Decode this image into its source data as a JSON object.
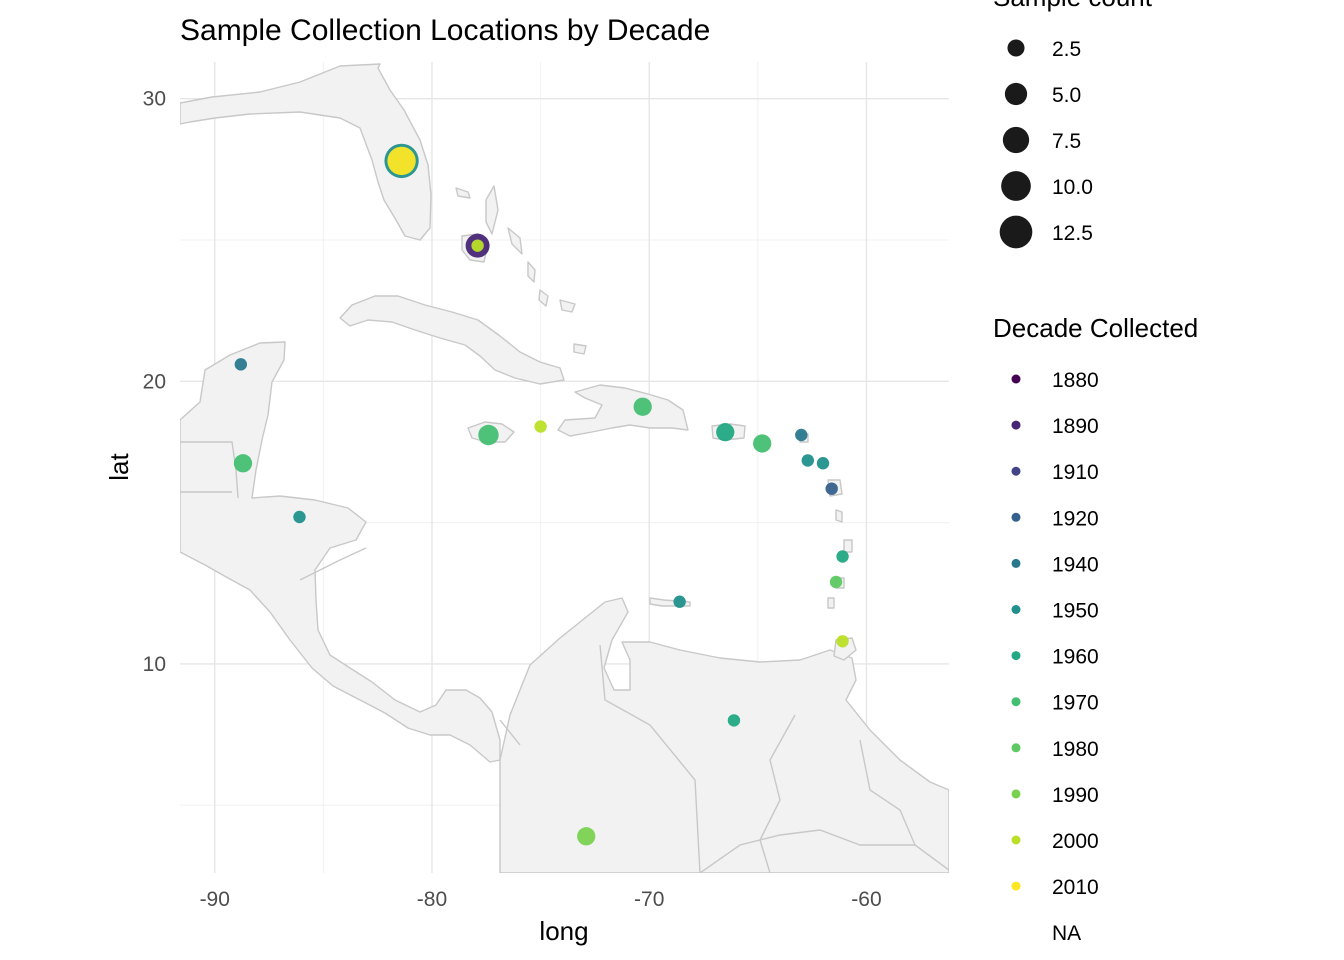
{
  "chart_data": {
    "type": "scatter",
    "title": "Sample Collection Locations by Decade",
    "xlabel": "long",
    "ylabel": "lat",
    "xlim": [
      -91.6,
      -56.2
    ],
    "ylim": [
      2.6,
      31.3
    ],
    "x_ticks": [
      -90,
      -80,
      -70,
      -60
    ],
    "x_tick_labels": [
      "-90",
      "-80",
      "-70",
      "-60"
    ],
    "y_ticks": [
      10,
      20,
      30
    ],
    "y_tick_labels": [
      "10",
      "20",
      "30"
    ],
    "grid": true,
    "size_legend": {
      "title": "Sample count",
      "entries": [
        {
          "label": "2.5",
          "value": 2.5
        },
        {
          "label": "5.0",
          "value": 5.0
        },
        {
          "label": "7.5",
          "value": 7.5
        },
        {
          "label": "10.0",
          "value": 10.0
        },
        {
          "label": "12.5",
          "value": 12.5
        }
      ]
    },
    "color_legend": {
      "title": "Decade Collected",
      "entries": [
        {
          "label": "1880",
          "color": "#440154"
        },
        {
          "label": "1890",
          "color": "#482576"
        },
        {
          "label": "1910",
          "color": "#414487"
        },
        {
          "label": "1920",
          "color": "#35608D"
        },
        {
          "label": "1940",
          "color": "#2A788E"
        },
        {
          "label": "1950",
          "color": "#21908C"
        },
        {
          "label": "1960",
          "color": "#22A884"
        },
        {
          "label": "1970",
          "color": "#43BF71"
        },
        {
          "label": "1980",
          "color": "#5ec962"
        },
        {
          "label": "1990",
          "color": "#7AD151"
        },
        {
          "label": "2000",
          "color": "#BBDF27"
        },
        {
          "label": "2010",
          "color": "#FDE725"
        },
        {
          "label": "NA",
          "color": ""
        }
      ]
    },
    "points": [
      {
        "long": -81.4,
        "lat": 27.8,
        "count": 14,
        "decade": "1950"
      },
      {
        "long": -81.4,
        "lat": 27.8,
        "count": 9,
        "decade": "2010"
      },
      {
        "long": -77.9,
        "lat": 24.8,
        "count": 6,
        "decade": "1890"
      },
      {
        "long": -77.9,
        "lat": 24.8,
        "count": 1,
        "decade": "2000"
      },
      {
        "long": -88.8,
        "lat": 20.6,
        "count": 1,
        "decade": "1940"
      },
      {
        "long": -88.7,
        "lat": 17.1,
        "count": 3,
        "decade": "1970"
      },
      {
        "long": -86.1,
        "lat": 15.2,
        "count": 1,
        "decade": "1950"
      },
      {
        "long": -77.4,
        "lat": 18.1,
        "count": 4,
        "decade": "1970"
      },
      {
        "long": -75.0,
        "lat": 18.4,
        "count": 1,
        "decade": "2000"
      },
      {
        "long": -70.3,
        "lat": 19.1,
        "count": 3,
        "decade": "1970"
      },
      {
        "long": -66.5,
        "lat": 18.2,
        "count": 3,
        "decade": "1960"
      },
      {
        "long": -64.8,
        "lat": 17.8,
        "count": 3,
        "decade": "1970"
      },
      {
        "long": -63.0,
        "lat": 18.1,
        "count": 1,
        "decade": "1940"
      },
      {
        "long": -62.7,
        "lat": 17.2,
        "count": 1,
        "decade": "1950"
      },
      {
        "long": -62.0,
        "lat": 17.1,
        "count": 1,
        "decade": "1950"
      },
      {
        "long": -61.6,
        "lat": 16.2,
        "count": 1,
        "decade": "1920"
      },
      {
        "long": -61.1,
        "lat": 13.8,
        "count": 1,
        "decade": "1960"
      },
      {
        "long": -61.4,
        "lat": 12.9,
        "count": 1,
        "decade": "1980"
      },
      {
        "long": -68.6,
        "lat": 12.2,
        "count": 1,
        "decade": "1950"
      },
      {
        "long": -61.1,
        "lat": 10.8,
        "count": 1,
        "decade": "2000"
      },
      {
        "long": -66.1,
        "lat": 8.0,
        "count": 1,
        "decade": "1960"
      },
      {
        "long": -72.9,
        "lat": 3.9,
        "count": 3,
        "decade": "1990"
      }
    ]
  }
}
